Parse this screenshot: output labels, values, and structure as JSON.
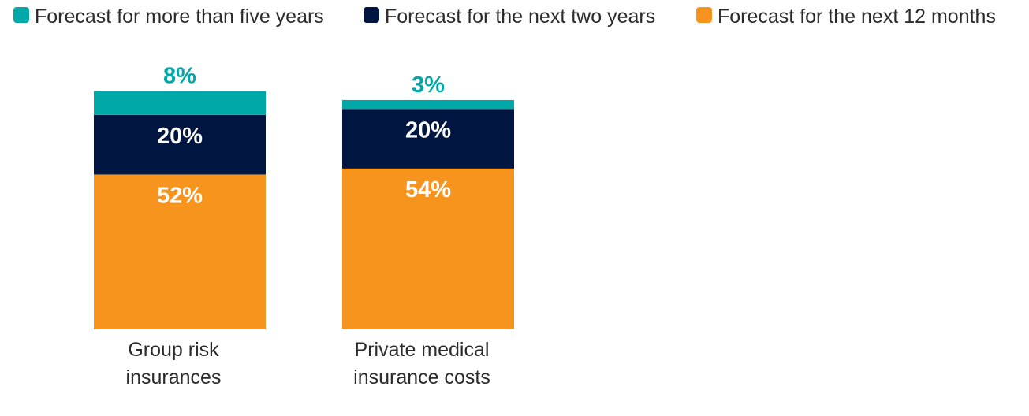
{
  "chart_data": {
    "type": "bar",
    "stacked": true,
    "categories": [
      "Group risk insurances",
      "Private medical insurance costs"
    ],
    "category_lines": [
      [
        "Group risk",
        "insurances"
      ],
      [
        "Private medical",
        "insurance costs"
      ]
    ],
    "series": [
      {
        "name": "Forecast for the next 12 months",
        "color": "#F7941D",
        "values": [
          52,
          54
        ],
        "labels": [
          "52%",
          "54%"
        ],
        "label_color": "#FFFFFF"
      },
      {
        "name": "Forecast for the next two years",
        "color": "#001540",
        "values": [
          20,
          20
        ],
        "labels": [
          "20%",
          "20%"
        ],
        "label_color": "#FFFFFF"
      },
      {
        "name": "Forecast for more than five years",
        "color": "#00A8A8",
        "values": [
          8,
          3
        ],
        "labels": [
          "8%",
          "3%"
        ],
        "label_color": "#00A8A8"
      }
    ],
    "legend_order": [
      2,
      1,
      0
    ],
    "legend_position": "top",
    "title": "",
    "xlabel": "",
    "ylabel": "",
    "grid": false,
    "axes_visible": false,
    "ylim": [
      0,
      80
    ]
  }
}
